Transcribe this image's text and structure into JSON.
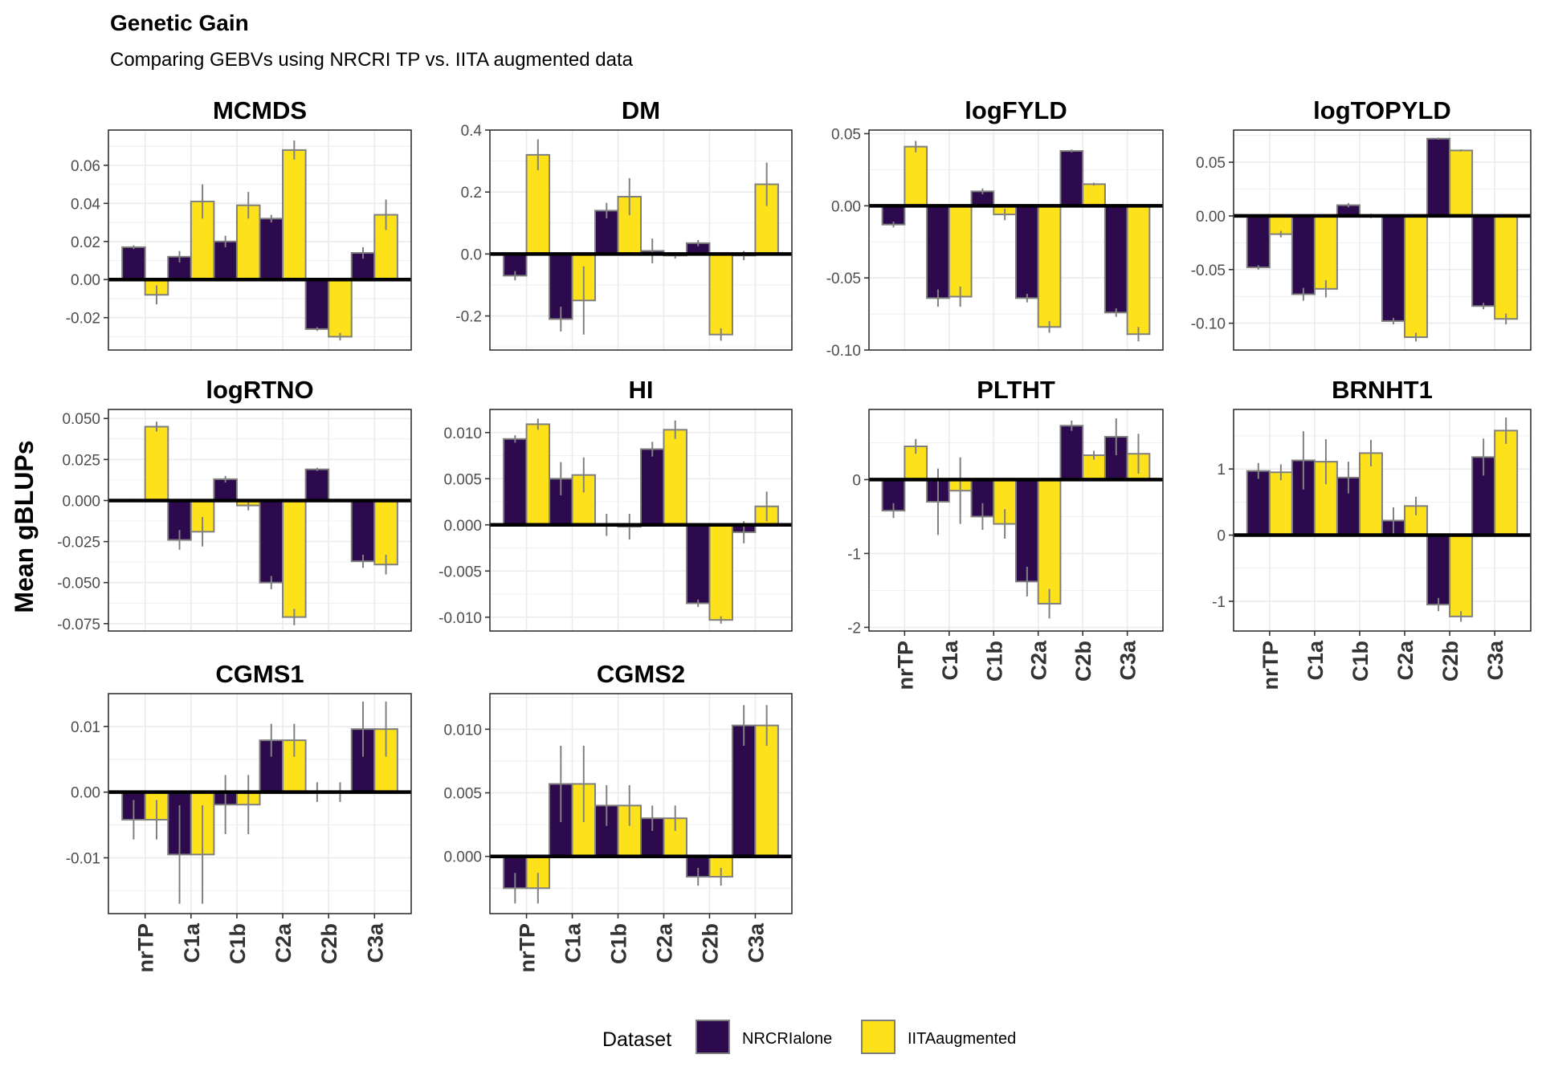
{
  "title": "Genetic Gain",
  "subtitle": "Comparing GEBVs using NRCRI TP vs. IITA augmented data",
  "ylabel": "Mean gBLUPs",
  "colors": {
    "NRCRIalone": "#2d0a4e",
    "IITAaugmented": "#fde21b",
    "bar_outline": "#7f7f7f",
    "errorbar": "#808080",
    "grid": "#ebebeb",
    "zero_line": "#000000"
  },
  "legend": {
    "title": "Dataset",
    "position": "bottom",
    "items": [
      "NRCRIalone",
      "IITAaugmented"
    ]
  },
  "chart_data": [
    {
      "type": "bar",
      "title": "MCMDS",
      "categories": [
        "nrTP",
        "C1a",
        "C1b",
        "C2a",
        "C2b",
        "C3a"
      ],
      "ylim": [
        -0.037,
        0.0785
      ],
      "yticks": [
        -0.02,
        0.0,
        0.02,
        0.04,
        0.06
      ],
      "ytick_labels": [
        "-0.02",
        "0.00",
        "0.02",
        "0.04",
        "0.06"
      ],
      "series": [
        {
          "name": "NRCRIalone",
          "values": [
            0.017,
            0.012,
            0.02,
            0.032,
            -0.026,
            0.014
          ],
          "err": [
            0.001,
            0.003,
            0.003,
            0.002,
            0.001,
            0.003
          ]
        },
        {
          "name": "IITAaugmented",
          "values": [
            -0.008,
            0.041,
            0.039,
            0.068,
            -0.03,
            0.034
          ],
          "err": [
            0.005,
            0.009,
            0.007,
            0.005,
            0.002,
            0.008
          ]
        }
      ]
    },
    {
      "type": "bar",
      "title": "DM",
      "categories": [
        "nrTP",
        "C1a",
        "C1b",
        "C2a",
        "C2b",
        "C3a"
      ],
      "ylim": [
        -0.31,
        0.4
      ],
      "yticks": [
        -0.2,
        0.0,
        0.2,
        0.4
      ],
      "ytick_labels": [
        "-0.2",
        "0.0",
        "0.2",
        "0.4"
      ],
      "series": [
        {
          "name": "NRCRIalone",
          "values": [
            -0.07,
            -0.21,
            0.14,
            0.01,
            0.035,
            -0.005
          ],
          "err": [
            0.015,
            0.04,
            0.025,
            0.04,
            0.01,
            0.015
          ]
        },
        {
          "name": "IITAaugmented",
          "values": [
            0.32,
            -0.15,
            0.185,
            -0.005,
            -0.26,
            0.225
          ],
          "err": [
            0.05,
            0.11,
            0.06,
            0.01,
            0.02,
            0.07
          ]
        }
      ]
    },
    {
      "type": "bar",
      "title": "logFYLD",
      "categories": [
        "nrTP",
        "C1a",
        "C1b",
        "C2a",
        "C2b",
        "C3a"
      ],
      "ylim": [
        -0.1,
        0.0525
      ],
      "yticks": [
        -0.1,
        -0.05,
        0.0,
        0.05
      ],
      "ytick_labels": [
        "-0.10",
        "-0.05",
        "0.00",
        "0.05"
      ],
      "series": [
        {
          "name": "NRCRIalone",
          "values": [
            -0.013,
            -0.064,
            0.01,
            -0.064,
            0.038,
            -0.074
          ],
          "err": [
            0.002,
            0.006,
            0.002,
            0.003,
            0.001,
            0.003
          ]
        },
        {
          "name": "IITAaugmented",
          "values": [
            0.041,
            -0.063,
            -0.006,
            -0.084,
            0.015,
            -0.089
          ],
          "err": [
            0.004,
            0.007,
            0.004,
            0.004,
            0.001,
            0.005
          ]
        }
      ]
    },
    {
      "type": "bar",
      "title": "logTOPYLD",
      "categories": [
        "nrTP",
        "C1a",
        "C1b",
        "C2a",
        "C2b",
        "C3a"
      ],
      "ylim": [
        -0.125,
        0.08
      ],
      "yticks": [
        -0.1,
        -0.05,
        0.0,
        0.05
      ],
      "ytick_labels": [
        "-0.10",
        "-0.05",
        "0.00",
        "0.05"
      ],
      "series": [
        {
          "name": "NRCRIalone",
          "values": [
            -0.048,
            -0.073,
            0.01,
            -0.098,
            0.072,
            -0.084
          ],
          "err": [
            0.002,
            0.006,
            0.002,
            0.003,
            0.001,
            0.003
          ]
        },
        {
          "name": "IITAaugmented",
          "values": [
            -0.017,
            -0.068,
            0.0,
            -0.113,
            0.061,
            -0.096
          ],
          "err": [
            0.003,
            0.008,
            0.002,
            0.004,
            0.001,
            0.005
          ]
        }
      ]
    },
    {
      "type": "bar",
      "title": "logRTNO",
      "categories": [
        "nrTP",
        "C1a",
        "C1b",
        "C2a",
        "C2b",
        "C3a"
      ],
      "ylim": [
        -0.0795,
        0.0555
      ],
      "yticks": [
        -0.075,
        -0.05,
        -0.025,
        0.0,
        0.025,
        0.05
      ],
      "ytick_labels": [
        "-0.075",
        "-0.050",
        "-0.025",
        "0.000",
        "0.025",
        "0.050"
      ],
      "series": [
        {
          "name": "NRCRIalone",
          "values": [
            0.0,
            -0.024,
            0.013,
            -0.05,
            0.019,
            -0.037
          ],
          "err": [
            0.001,
            0.006,
            0.002,
            0.004,
            0.001,
            0.004
          ]
        },
        {
          "name": "IITAaugmented",
          "values": [
            0.045,
            -0.019,
            -0.003,
            -0.071,
            0.0,
            -0.039
          ],
          "err": [
            0.003,
            0.009,
            0.003,
            0.005,
            0.001,
            0.006
          ]
        }
      ]
    },
    {
      "type": "bar",
      "title": "HI",
      "categories": [
        "nrTP",
        "C1a",
        "C1b",
        "C2a",
        "C2b",
        "C3a"
      ],
      "ylim": [
        -0.0115,
        0.0125
      ],
      "yticks": [
        -0.01,
        -0.005,
        0.0,
        0.005,
        0.01
      ],
      "ytick_labels": [
        "-0.010",
        "-0.005",
        "0.000",
        "0.005",
        "0.010"
      ],
      "series": [
        {
          "name": "NRCRIalone",
          "values": [
            0.0093,
            0.005,
            0.0,
            0.0082,
            -0.0085,
            -0.0008
          ],
          "err": [
            0.0004,
            0.0018,
            0.0012,
            0.0008,
            0.0004,
            0.0012
          ]
        },
        {
          "name": "IITAaugmented",
          "values": [
            0.0109,
            0.0054,
            -0.0002,
            0.0103,
            -0.0103,
            0.002
          ],
          "err": [
            0.0006,
            0.0019,
            0.0014,
            0.001,
            0.0004,
            0.0016
          ]
        }
      ]
    },
    {
      "type": "bar",
      "title": "PLTHT",
      "categories": [
        "nrTP",
        "C1a",
        "C1b",
        "C2a",
        "C2b",
        "C3a"
      ],
      "ylim": [
        -2.05,
        0.95
      ],
      "yticks": [
        -2,
        -1,
        0
      ],
      "ytick_labels": [
        "-2",
        "-1",
        "0"
      ],
      "series": [
        {
          "name": "NRCRIalone",
          "values": [
            -0.42,
            -0.3,
            -0.5,
            -1.38,
            0.73,
            0.58
          ],
          "err": [
            0.1,
            0.45,
            0.18,
            0.2,
            0.07,
            0.25
          ]
        },
        {
          "name": "IITAaugmented",
          "values": [
            0.45,
            -0.15,
            -0.6,
            -1.68,
            0.33,
            0.35
          ],
          "err": [
            0.1,
            0.45,
            0.2,
            0.2,
            0.06,
            0.27
          ]
        }
      ]
    },
    {
      "type": "bar",
      "title": "BRNHT1",
      "categories": [
        "nrTP",
        "C1a",
        "C1b",
        "C2a",
        "C2b",
        "C3a"
      ],
      "ylim": [
        -1.45,
        1.9
      ],
      "yticks": [
        -1,
        0,
        1
      ],
      "ytick_labels": [
        "-1",
        "0",
        "1"
      ],
      "series": [
        {
          "name": "NRCRIalone",
          "values": [
            0.97,
            1.13,
            0.87,
            0.22,
            -1.05,
            1.18
          ],
          "err": [
            0.12,
            0.44,
            0.24,
            0.2,
            0.1,
            0.28
          ]
        },
        {
          "name": "IITAaugmented",
          "values": [
            0.95,
            1.11,
            1.24,
            0.44,
            -1.23,
            1.58
          ],
          "err": [
            0.12,
            0.34,
            0.2,
            0.14,
            0.08,
            0.2
          ]
        }
      ]
    },
    {
      "type": "bar",
      "title": "CGMS1",
      "categories": [
        "nrTP",
        "C1a",
        "C1b",
        "C2a",
        "C2b",
        "C3a"
      ],
      "ylim": [
        -0.0185,
        0.015
      ],
      "yticks": [
        -0.01,
        0.0,
        0.01
      ],
      "ytick_labels": [
        "-0.01",
        "0.00",
        "0.01"
      ],
      "series": [
        {
          "name": "NRCRIalone",
          "values": [
            -0.0042,
            -0.0095,
            -0.0019,
            0.0079,
            0.0,
            0.0096
          ],
          "err": [
            0.003,
            0.0075,
            0.0045,
            0.0025,
            0.0015,
            0.0042
          ]
        },
        {
          "name": "IITAaugmented",
          "values": [
            -0.0042,
            -0.0095,
            -0.0019,
            0.0079,
            0.0,
            0.0096
          ],
          "err": [
            0.003,
            0.0075,
            0.0045,
            0.0025,
            0.0015,
            0.0042
          ]
        }
      ]
    },
    {
      "type": "bar",
      "title": "CGMS2",
      "categories": [
        "nrTP",
        "C1a",
        "C1b",
        "C2a",
        "C2b",
        "C3a"
      ],
      "ylim": [
        -0.0045,
        0.0128
      ],
      "yticks": [
        0.0,
        0.005,
        0.01
      ],
      "ytick_labels": [
        "0.000",
        "0.005",
        "0.010"
      ],
      "series": [
        {
          "name": "NRCRIalone",
          "values": [
            -0.0025,
            0.0057,
            0.004,
            0.003,
            -0.0016,
            0.0103
          ],
          "err": [
            0.0012,
            0.003,
            0.0016,
            0.001,
            0.0007,
            0.0016
          ]
        },
        {
          "name": "IITAaugmented",
          "values": [
            -0.0025,
            0.0057,
            0.004,
            0.003,
            -0.0016,
            0.0103
          ],
          "err": [
            0.0012,
            0.003,
            0.0016,
            0.001,
            0.0007,
            0.0016
          ]
        }
      ]
    }
  ]
}
